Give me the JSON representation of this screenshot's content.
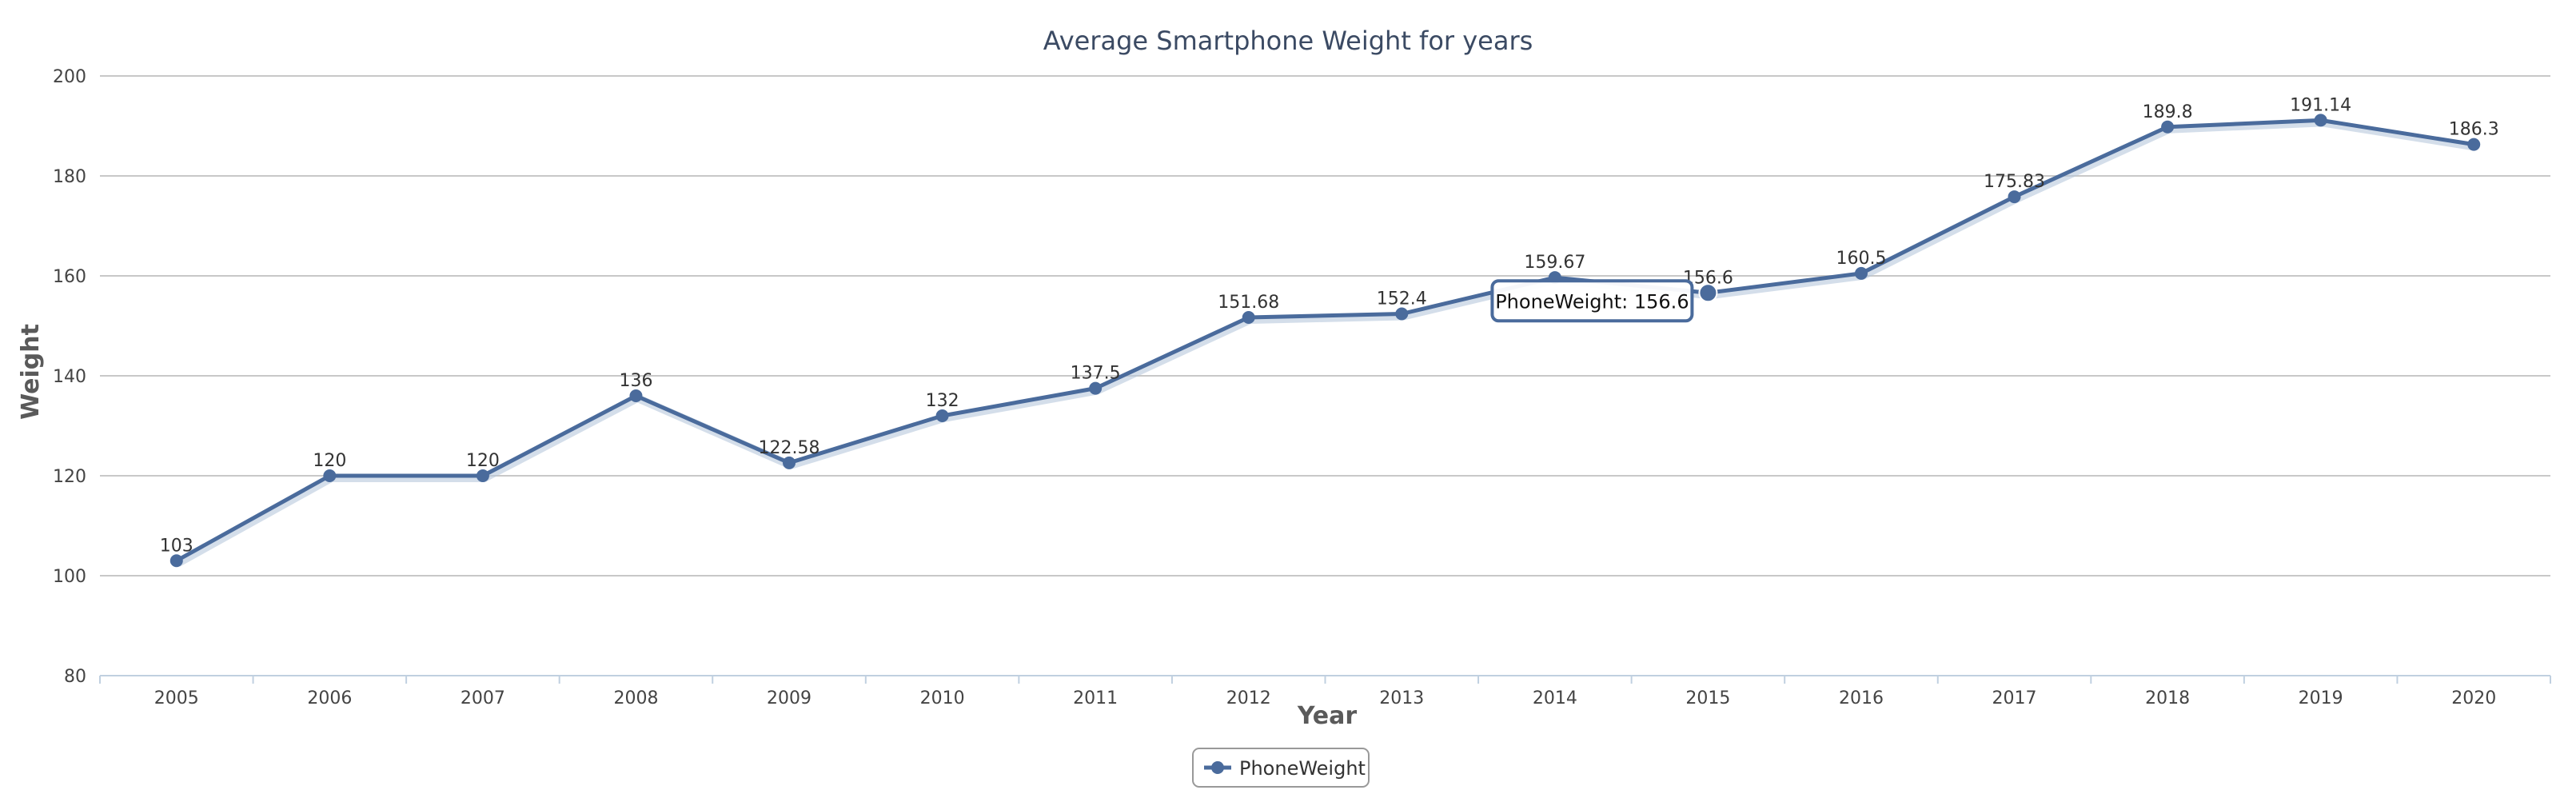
{
  "chart_data": {
    "type": "line",
    "title": "Average Smartphone Weight for years",
    "xlabel": "Year",
    "ylabel": "Weight",
    "categories": [
      "2005",
      "2006",
      "2007",
      "2008",
      "2009",
      "2010",
      "2011",
      "2012",
      "2013",
      "2014",
      "2015",
      "2016",
      "2017",
      "2018",
      "2019",
      "2020"
    ],
    "series": [
      {
        "name": "PhoneWeight",
        "values": [
          103,
          120,
          120,
          136,
          122.58,
          132,
          137.5,
          151.68,
          152.4,
          159.67,
          156.6,
          160.5,
          175.83,
          189.8,
          191.14,
          186.3
        ],
        "color": "#4a6b9c"
      }
    ],
    "ylim": [
      80,
      200
    ],
    "yticks": [
      80,
      100,
      120,
      140,
      160,
      180,
      200
    ],
    "grid": true,
    "legend": "bottom-center",
    "tooltip": {
      "category": "2015",
      "text": "PhoneWeight: 156.6"
    }
  }
}
